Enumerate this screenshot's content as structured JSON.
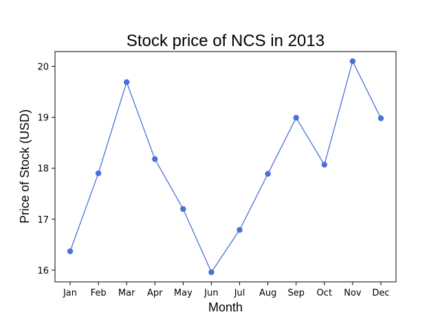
{
  "chart_data": {
    "type": "line",
    "title": "Stock price of NCS in 2013",
    "xlabel": "Month",
    "ylabel": "Price of Stock (USD)",
    "categories": [
      "Jan",
      "Feb",
      "Mar",
      "Apr",
      "May",
      "Jun",
      "Jul",
      "Aug",
      "Sep",
      "Oct",
      "Nov",
      "Dec"
    ],
    "series": [
      {
        "values": [
          16.37,
          17.9,
          19.69,
          18.18,
          17.2,
          15.96,
          16.79,
          17.89,
          18.99,
          18.07,
          20.1,
          18.98
        ]
      }
    ],
    "yticks": [
      16,
      17,
      18,
      19,
      20
    ],
    "ylim": [
      15.77,
      20.29
    ],
    "grid": false,
    "colors": {
      "series": "#4a6fd8",
      "marker": "#4a6fd8",
      "axis": "#000000"
    }
  }
}
